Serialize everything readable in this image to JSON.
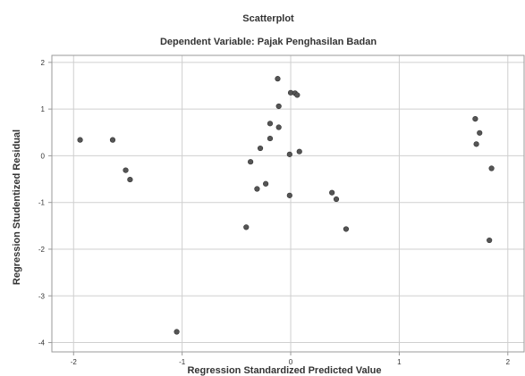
{
  "chart_data": {
    "type": "scatter",
    "title": "Scatterplot",
    "subtitle": "Dependent Variable: Pajak Penghasilan Badan",
    "xlabel": "Regression Standardized Predicted Value",
    "ylabel": "Regression Studentized Residual",
    "xlim": [
      -2.2,
      2.15
    ],
    "ylim": [
      -4.2,
      2.15
    ],
    "xticks": [
      -2,
      -1,
      0,
      1,
      2
    ],
    "xtick_labels": [
      "-2",
      "-1",
      "0",
      "1",
      "2"
    ],
    "yticks": [
      2,
      1,
      0,
      -1,
      -2,
      -3,
      -4
    ],
    "ytick_labels": [
      "2",
      "1",
      "0",
      "-1",
      "-2",
      "-3",
      "-4"
    ],
    "grid": true,
    "points": [
      {
        "x": -1.94,
        "y": 0.34
      },
      {
        "x": -1.64,
        "y": 0.34
      },
      {
        "x": -1.52,
        "y": -0.31
      },
      {
        "x": -1.48,
        "y": -0.51
      },
      {
        "x": -1.05,
        "y": -3.77
      },
      {
        "x": -0.41,
        "y": -1.53
      },
      {
        "x": -0.37,
        "y": -0.13
      },
      {
        "x": -0.31,
        "y": -0.71
      },
      {
        "x": -0.28,
        "y": 0.16
      },
      {
        "x": -0.23,
        "y": -0.6
      },
      {
        "x": -0.19,
        "y": 0.37
      },
      {
        "x": -0.19,
        "y": 0.69
      },
      {
        "x": -0.12,
        "y": 1.65
      },
      {
        "x": -0.11,
        "y": 1.06
      },
      {
        "x": -0.11,
        "y": 0.61
      },
      {
        "x": -0.01,
        "y": -0.85
      },
      {
        "x": -0.01,
        "y": 0.03
      },
      {
        "x": 0.0,
        "y": 1.35
      },
      {
        "x": 0.04,
        "y": 1.34
      },
      {
        "x": 0.06,
        "y": 1.3
      },
      {
        "x": 0.08,
        "y": 0.09
      },
      {
        "x": 0.38,
        "y": -0.79
      },
      {
        "x": 0.42,
        "y": -0.93
      },
      {
        "x": 0.51,
        "y": -1.57
      },
      {
        "x": 1.7,
        "y": 0.79
      },
      {
        "x": 1.71,
        "y": 0.25
      },
      {
        "x": 1.74,
        "y": 0.49
      },
      {
        "x": 1.83,
        "y": -1.81
      },
      {
        "x": 1.85,
        "y": -0.27
      }
    ]
  }
}
